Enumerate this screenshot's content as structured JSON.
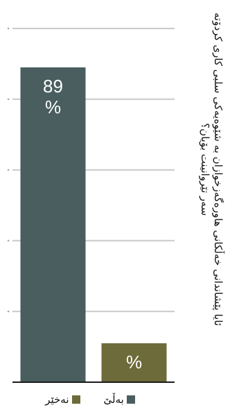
{
  "chart_data": {
    "type": "bar",
    "title": "ئایا پێشاندانی خەڵکانی هاورەگەزخوازان بە شێوەیەکی سلبی کاری کردۆتە سەر تێروانینت بۆیان؟",
    "categories": [
      "بەڵێ",
      "نەخێر"
    ],
    "series": [
      {
        "values": [
          89,
          11
        ],
        "labels": [
          "89\n%",
          "%"
        ]
      }
    ],
    "colors": [
      "#4a5e5f",
      "#6e6b3a"
    ],
    "ylim": [
      0,
      100
    ],
    "grid": true,
    "legend_position": "bottom",
    "legend": [
      {
        "label": "بەڵێ",
        "color": "#4a5e5f"
      },
      {
        "label": "نەخێر",
        "color": "#6e6b3a"
      }
    ]
  }
}
